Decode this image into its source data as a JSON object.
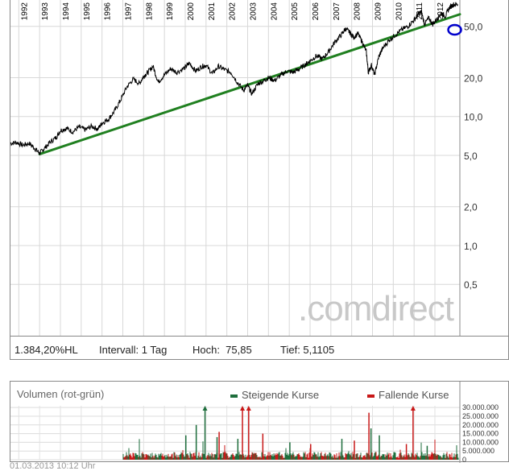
{
  "chart_data": [
    {
      "type": "line",
      "scale": "log",
      "x_ticks": [
        "1992",
        "1993",
        "1994",
        "1995",
        "1996",
        "1997",
        "1998",
        "1999",
        "2000",
        "2001",
        "2002",
        "2003",
        "2004",
        "2005",
        "2006",
        "2007",
        "2008",
        "2009",
        "2010",
        "2011",
        "2012"
      ],
      "y_ticks": [
        {
          "value": 50,
          "label": "50,0"
        },
        {
          "value": 20,
          "label": "20,0"
        },
        {
          "value": 10,
          "label": "10,0"
        },
        {
          "value": 5,
          "label": "5,0"
        },
        {
          "value": 2,
          "label": "2,0"
        },
        {
          "value": 1,
          "label": "1,0"
        },
        {
          "value": 0.5,
          "label": "0,5"
        }
      ],
      "ylim": [
        0.2,
        80
      ],
      "xlim": [
        1991.6,
        2013.2
      ],
      "series": [
        {
          "color": "#000000",
          "points": [
            [
              1991.6,
              6.2
            ],
            [
              1991.9,
              6.3
            ],
            [
              1992.2,
              6.0
            ],
            [
              1992.5,
              6.2
            ],
            [
              1992.8,
              5.6
            ],
            [
              1993.0,
              5.2
            ],
            [
              1993.2,
              5.6
            ],
            [
              1993.5,
              6.3
            ],
            [
              1993.8,
              6.9
            ],
            [
              1994.0,
              7.8
            ],
            [
              1994.3,
              8.1
            ],
            [
              1994.6,
              7.6
            ],
            [
              1994.9,
              8.3
            ],
            [
              1995.2,
              7.9
            ],
            [
              1995.5,
              8.4
            ],
            [
              1995.8,
              8.0
            ],
            [
              1996.0,
              8.9
            ],
            [
              1996.3,
              9.5
            ],
            [
              1996.6,
              11.0
            ],
            [
              1996.9,
              13.5
            ],
            [
              1997.2,
              17.0
            ],
            [
              1997.5,
              19.5
            ],
            [
              1997.8,
              18.0
            ],
            [
              1998.0,
              20.5
            ],
            [
              1998.2,
              22.0
            ],
            [
              1998.45,
              24.5
            ],
            [
              1998.7,
              18.5
            ],
            [
              1999.0,
              21.0
            ],
            [
              1999.3,
              23.5
            ],
            [
              1999.6,
              22.0
            ],
            [
              2000.0,
              24.0
            ],
            [
              2000.2,
              26.0
            ],
            [
              2000.5,
              22.5
            ],
            [
              2000.8,
              24.5
            ],
            [
              2001.0,
              25.0
            ],
            [
              2001.3,
              21.5
            ],
            [
              2001.6,
              24.5
            ],
            [
              2001.9,
              23.0
            ],
            [
              2002.2,
              22.0
            ],
            [
              2002.5,
              18.5
            ],
            [
              2002.8,
              16.0
            ],
            [
              2003.0,
              17.5
            ],
            [
              2003.2,
              15.0
            ],
            [
              2003.5,
              18.0
            ],
            [
              2003.8,
              19.0
            ],
            [
              2004.0,
              20.0
            ],
            [
              2004.3,
              19.0
            ],
            [
              2004.6,
              21.0
            ],
            [
              2004.9,
              22.5
            ],
            [
              2005.2,
              22.0
            ],
            [
              2005.5,
              23.5
            ],
            [
              2005.8,
              25.5
            ],
            [
              2006.0,
              27.0
            ],
            [
              2006.3,
              29.5
            ],
            [
              2006.6,
              28.0
            ],
            [
              2006.9,
              32.0
            ],
            [
              2007.2,
              38.0
            ],
            [
              2007.5,
              43.0
            ],
            [
              2007.7,
              48.0
            ],
            [
              2007.9,
              45.0
            ],
            [
              2008.1,
              41.0
            ],
            [
              2008.3,
              44.0
            ],
            [
              2008.5,
              38.0
            ],
            [
              2008.7,
              32.0
            ],
            [
              2008.8,
              22.0
            ],
            [
              2008.95,
              25.0
            ],
            [
              2009.1,
              21.0
            ],
            [
              2009.3,
              29.0
            ],
            [
              2009.5,
              34.0
            ],
            [
              2009.8,
              39.0
            ],
            [
              2010.1,
              43.0
            ],
            [
              2010.4,
              47.0
            ],
            [
              2010.7,
              50.0
            ],
            [
              2011.0,
              56.0
            ],
            [
              2011.2,
              62.0
            ],
            [
              2011.35,
              65.0
            ],
            [
              2011.5,
              52.0
            ],
            [
              2011.7,
              58.0
            ],
            [
              2011.9,
              52.0
            ],
            [
              2012.1,
              57.0
            ],
            [
              2012.3,
              63.0
            ],
            [
              2012.5,
              60.0
            ],
            [
              2012.7,
              70.0
            ],
            [
              2012.9,
              74.0
            ],
            [
              2013.1,
              74.0
            ]
          ]
        },
        {
          "color": "#208020",
          "points": [
            [
              1993.0,
              5.1105
            ],
            [
              2013.2,
              62.0
            ]
          ]
        }
      ],
      "highlight_marker": {
        "x": 2012.95,
        "y": 47.0,
        "color": "#0000cc"
      },
      "watermark": ".comdirect",
      "stats": {
        "change": "1.384,20%HL",
        "intervall": "Intervall: 1 Tag",
        "hoch": "Hoch:  75,85",
        "tief": "Tief: 5,1105"
      }
    },
    {
      "type": "bar",
      "title": "Volumen (rot-grün)",
      "legend_up": "Steigende Kurse",
      "legend_down": "Fallende Kurse",
      "color_up": "#1e6e3c",
      "color_down": "#c81818",
      "y_ticks": [
        {
          "value": 30000000,
          "label": "30.000.000"
        },
        {
          "value": 25000000,
          "label": "25.000.000"
        },
        {
          "value": 20000000,
          "label": "20.000.000"
        },
        {
          "value": 15000000,
          "label": "15.000.000"
        },
        {
          "value": 10000000,
          "label": "10.000.000"
        },
        {
          "value": 5000000,
          "label": "5.000.000"
        },
        {
          "value": 0,
          "label": "0"
        }
      ],
      "ylim": [
        0,
        31000000
      ],
      "xlim": [
        1991.6,
        2013.2
      ],
      "data_start": 1997.0,
      "typical_volume": 2500000,
      "spikes": [
        {
          "x": 2000.0,
          "value": 14000000,
          "dir": "up"
        },
        {
          "x": 2000.5,
          "value": 20000000,
          "dir": "up"
        },
        {
          "x": 2001.5,
          "value": 13000000,
          "dir": "up"
        },
        {
          "x": 2001.6,
          "value": 16000000,
          "dir": "down"
        },
        {
          "x": 2002.5,
          "value": 12000000,
          "dir": "up"
        },
        {
          "x": 2003.7,
          "value": 15000000,
          "dir": "down"
        },
        {
          "x": 2005.0,
          "value": 10000000,
          "dir": "up"
        },
        {
          "x": 2006.0,
          "value": 9000000,
          "dir": "down"
        },
        {
          "x": 2007.5,
          "value": 12000000,
          "dir": "up"
        },
        {
          "x": 2008.1,
          "value": 11000000,
          "dir": "down"
        },
        {
          "x": 2008.8,
          "value": 27000000,
          "dir": "down"
        },
        {
          "x": 2008.9,
          "value": 18000000,
          "dir": "up"
        },
        {
          "x": 2009.3,
          "value": 14000000,
          "dir": "up"
        },
        {
          "x": 2010.6,
          "value": 9000000,
          "dir": "down"
        },
        {
          "x": 2011.6,
          "value": 8000000,
          "dir": "up"
        }
      ],
      "arrows": [
        {
          "x": 2000.95,
          "dir": "up"
        },
        {
          "x": 2002.75,
          "dir": "down"
        },
        {
          "x": 2003.05,
          "dir": "down"
        },
        {
          "x": 2010.95,
          "dir": "down"
        }
      ]
    }
  ],
  "timestamp": "01.03.2013 10:12 Uhr"
}
